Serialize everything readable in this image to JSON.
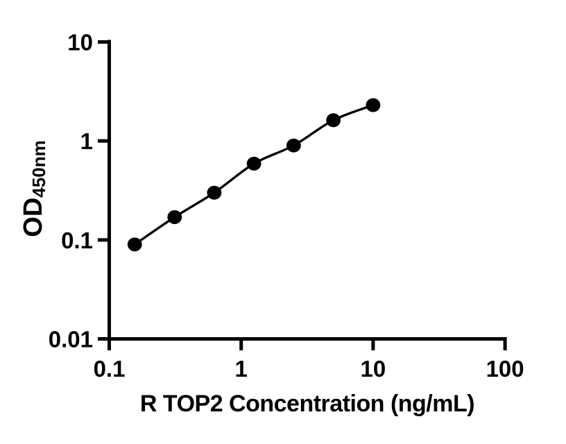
{
  "chart_data": {
    "type": "scatter",
    "scale": "log-log",
    "title": "",
    "xlabel": "R TOP2 Concentration (ng/mL)",
    "ylabel_main": "OD",
    "ylabel_sub": "450nm",
    "x": [
      0.156,
      0.313,
      0.625,
      1.25,
      2.5,
      5,
      10
    ],
    "y": [
      0.09,
      0.17,
      0.3,
      0.59,
      0.9,
      1.62,
      2.3
    ],
    "xlim": [
      0.1,
      100
    ],
    "ylim": [
      0.01,
      10
    ],
    "x_ticks": [
      0.1,
      1,
      10,
      100
    ],
    "x_tick_labels": [
      "0.1",
      "1",
      "10",
      "100"
    ],
    "y_ticks": [
      10,
      1,
      0.1,
      0.01
    ],
    "y_tick_labels": [
      "10",
      "1",
      "0.1",
      "0.01"
    ],
    "grid": false,
    "legend": "none",
    "line_color": "#000000",
    "marker_color": "#000000",
    "axis_color": "#000000",
    "background_color": "#ffffff"
  }
}
